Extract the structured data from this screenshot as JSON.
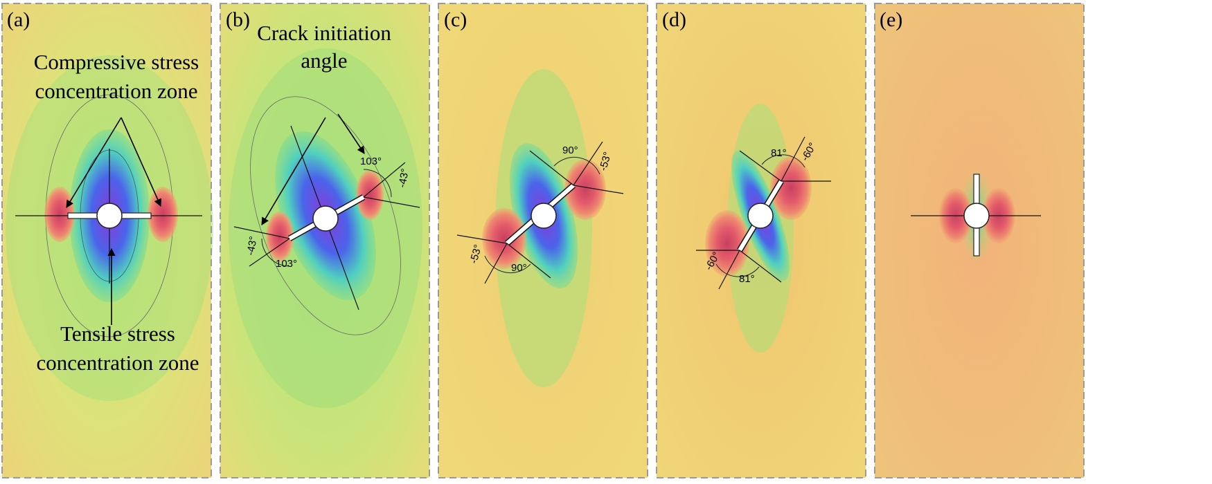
{
  "panels": [
    {
      "id": "a",
      "label": "(a)",
      "angles": [],
      "annotations": {
        "top_line1": "Compressive stress",
        "top_line2": "concentration zone",
        "bottom_line1": "Tensile stress",
        "bottom_line2": "concentration zone"
      }
    },
    {
      "id": "b",
      "label": "(b)",
      "angles": [
        "103°",
        "-43°",
        "103°",
        "-43°"
      ],
      "annotations": {
        "top_line1": "Crack initiation",
        "top_line2": "angle"
      }
    },
    {
      "id": "c",
      "label": "(c)",
      "angles": [
        "90°",
        "-53°",
        "90°",
        "-53°"
      ]
    },
    {
      "id": "d",
      "label": "(d)",
      "angles": [
        "81°",
        "-60°",
        "81°",
        "-60°"
      ]
    },
    {
      "id": "e",
      "label": "(e)",
      "angles": []
    }
  ],
  "colors": {
    "field_yellow": "#eedd78",
    "field_green": "#a8e07a",
    "field_orange": "#f0b868",
    "field_red": "#e8907a",
    "core_blue": "#4a64ea",
    "core_purple": "#8a3ad8",
    "core_cyan": "#50d0c0",
    "border": "#999999"
  }
}
